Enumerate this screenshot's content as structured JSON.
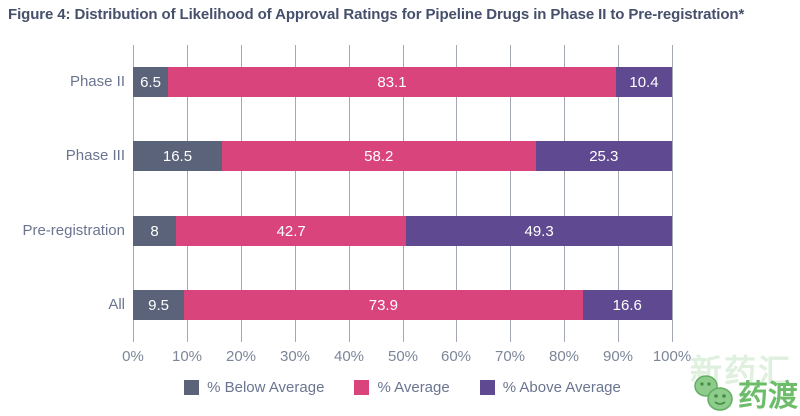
{
  "title": "Figure 4: Distribution of Likelihood of Approval Ratings for Pipeline Drugs in Phase II to Pre-registration*",
  "colors": {
    "below_average": "#5a6379",
    "average": "#d9447c",
    "above_average": "#5f4a92",
    "title_text": "#46506c",
    "axis_label_text": "#6b7590",
    "tick_text": "#7c8699",
    "gridline": "#a3a9b4",
    "bar_value_text": "#ffffff",
    "watermark_green": "#6cbc6a"
  },
  "chart_data": {
    "type": "bar",
    "orientation": "horizontal",
    "stacked": true,
    "title": "Figure 4: Distribution of Likelihood of Approval Ratings for Pipeline Drugs in Phase II to Pre-registration*",
    "categories": [
      "Phase II",
      "Phase III",
      "Pre-registration",
      "All"
    ],
    "series": [
      {
        "name": "% Below Average",
        "color": "#5a6379",
        "values": [
          6.5,
          16.5,
          8,
          9.5
        ]
      },
      {
        "name": "% Average",
        "color": "#d9447c",
        "values": [
          83.1,
          58.2,
          42.7,
          73.9
        ]
      },
      {
        "name": "% Above Average",
        "color": "#5f4a92",
        "values": [
          10.4,
          25.3,
          49.3,
          16.6
        ]
      }
    ],
    "x_ticks": [
      "0%",
      "10%",
      "20%",
      "30%",
      "40%",
      "50%",
      "60%",
      "70%",
      "80%",
      "90%",
      "100%"
    ],
    "xlim": [
      0,
      100
    ],
    "grid": true,
    "legend_position": "bottom"
  },
  "legend": [
    {
      "label": "% Below Average",
      "color": "#5a6379"
    },
    {
      "label": "% Average",
      "color": "#d9447c"
    },
    {
      "label": "% Above Average",
      "color": "#5f4a92"
    }
  ],
  "watermark": {
    "background_text": "新药汇",
    "logo_text": "药渡"
  }
}
